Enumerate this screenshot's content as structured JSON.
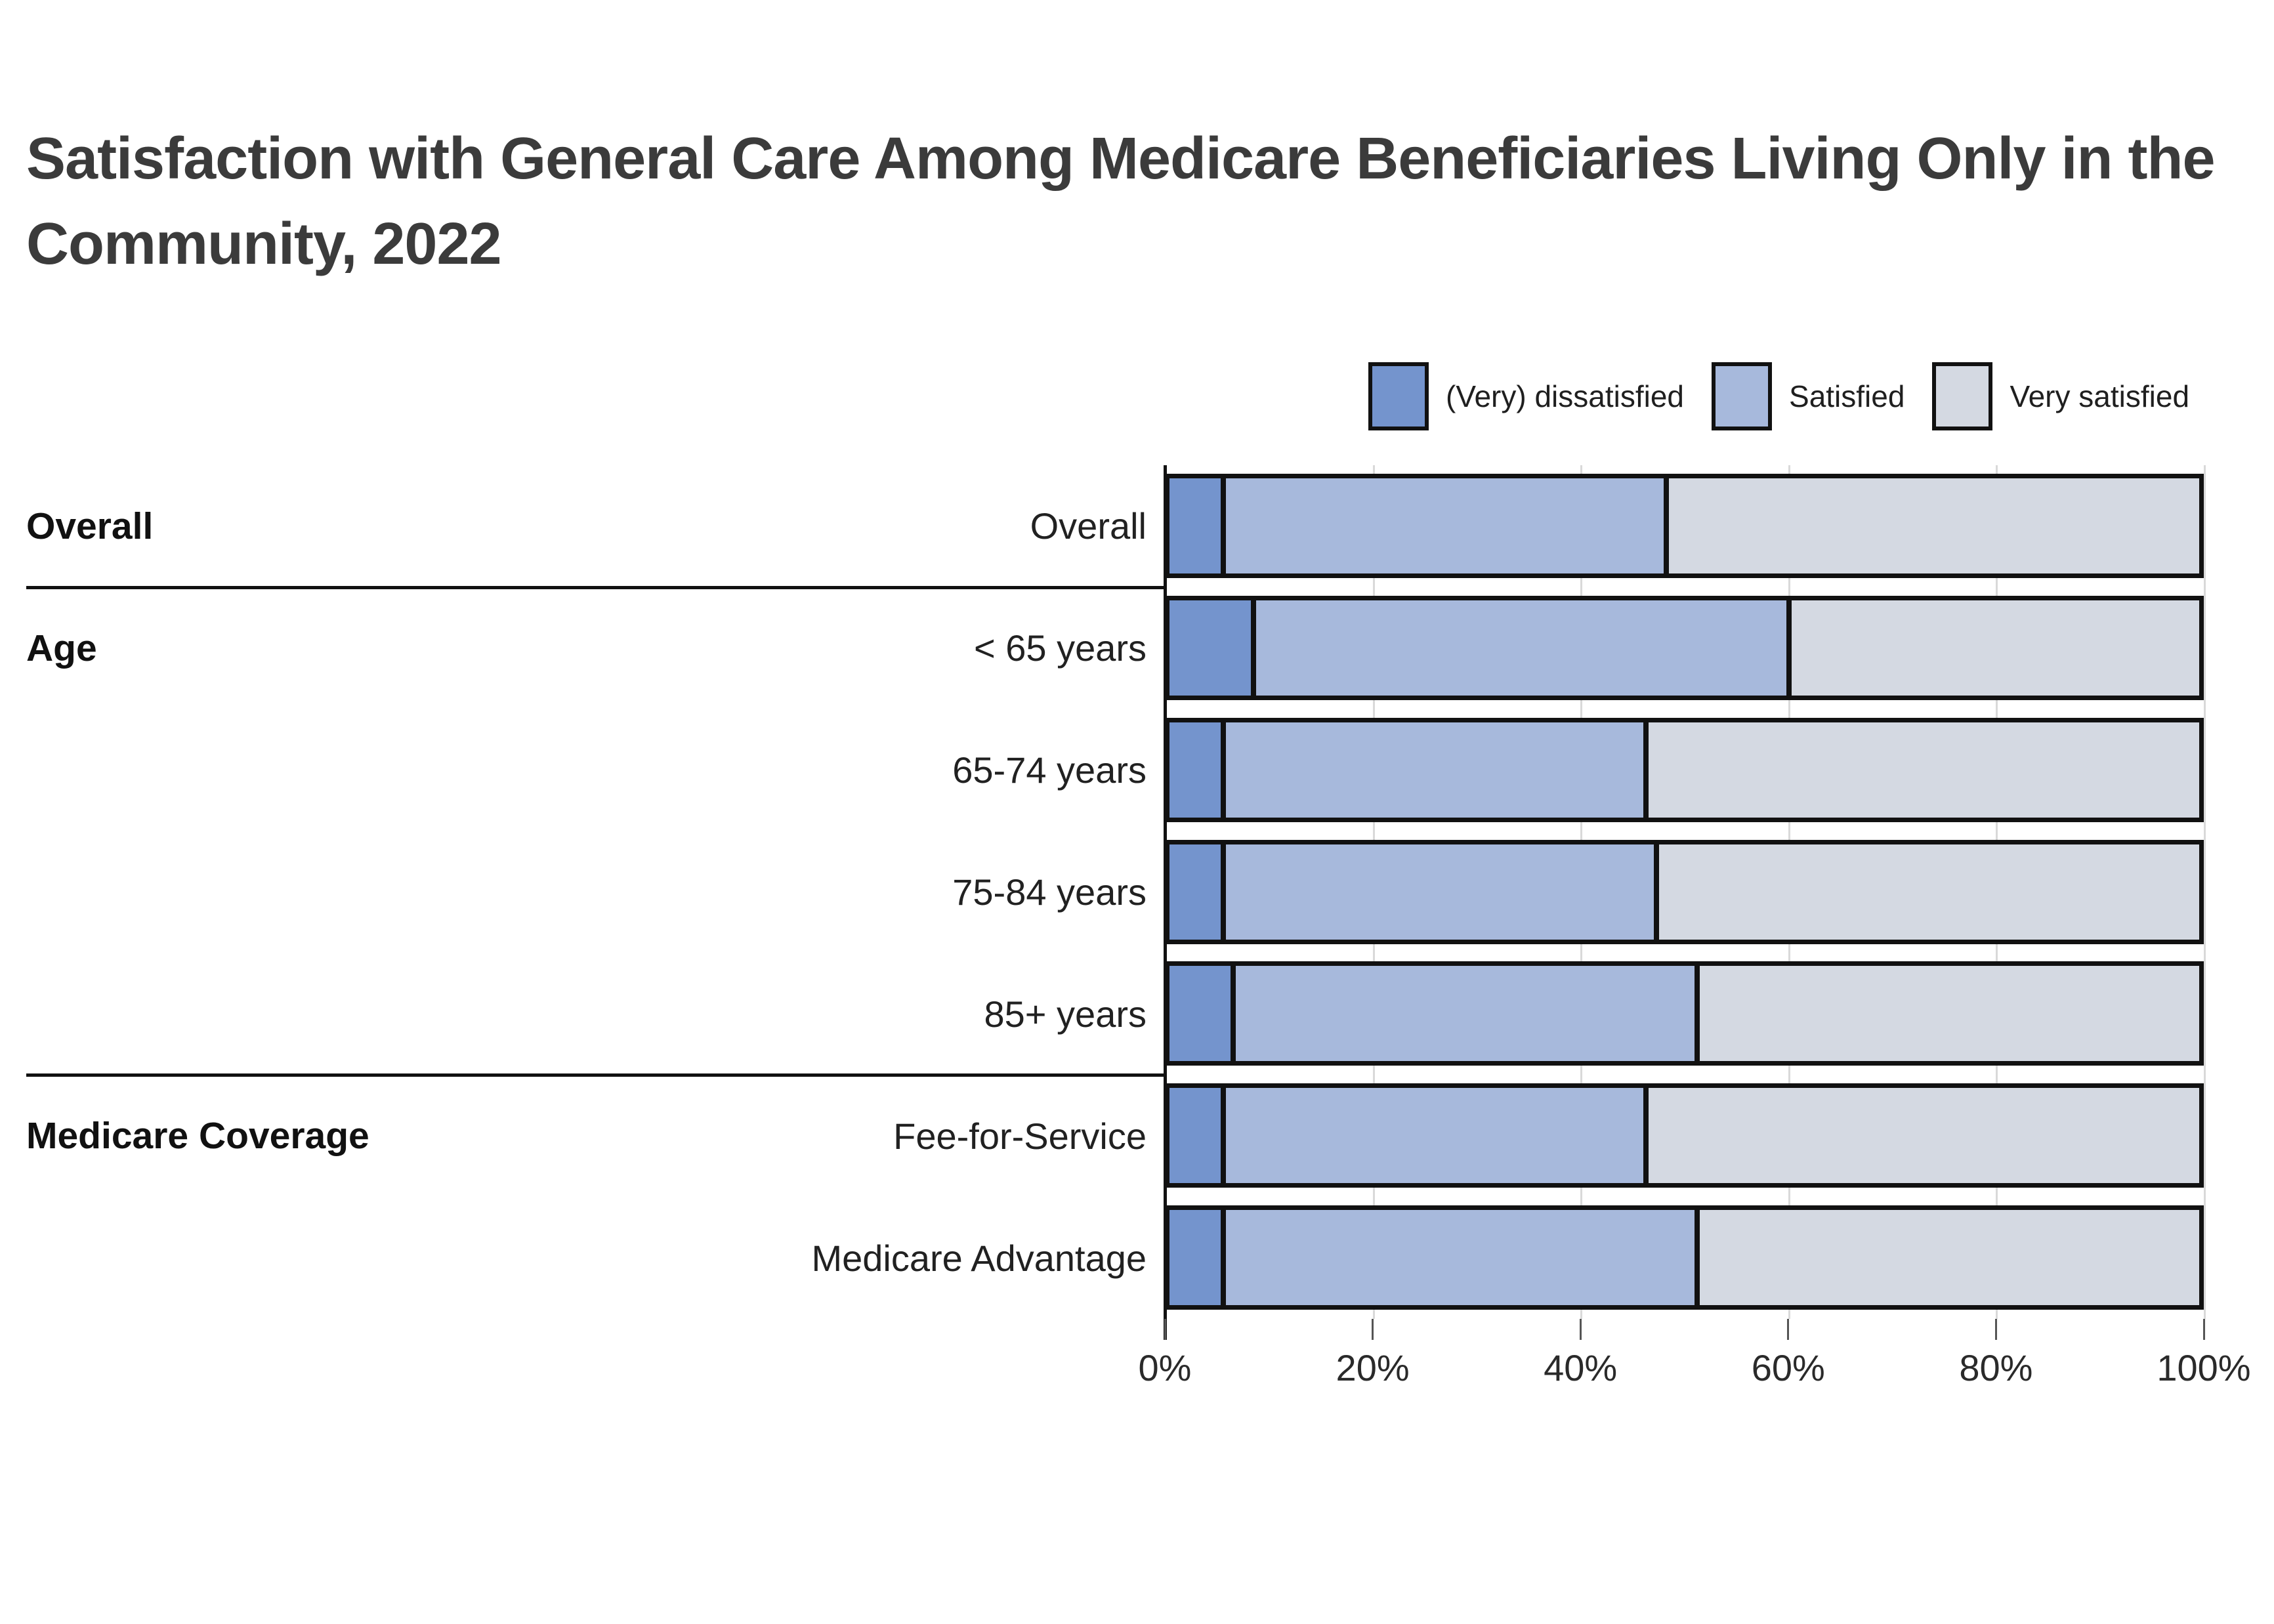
{
  "chart_data": {
    "type": "stacked_bar_horizontal",
    "title": "Satisfaction with General Care Among Medicare Beneficiaries Living Only in the Community, 2022",
    "legend_position": "top-right",
    "grid": "vertical-light",
    "x_axis": {
      "range": [
        0,
        100
      ],
      "unit": "percent",
      "ticks": [
        "0%",
        "20%",
        "40%",
        "60%",
        "80%",
        "100%"
      ]
    },
    "series": [
      {
        "name": "(Very) dissatisfied",
        "color": "#7494cd"
      },
      {
        "name": "Satisfied",
        "color": "#a7b9dc"
      },
      {
        "name": "Very satisfied",
        "color": "#d4d9e2"
      }
    ],
    "rows": [
      {
        "group": "Overall",
        "label": "Overall",
        "values": [
          5,
          43,
          52
        ]
      },
      {
        "group": "Age",
        "label": "< 65 years",
        "values": [
          8,
          52,
          40
        ]
      },
      {
        "label": "65-74 years",
        "values": [
          5,
          41,
          54
        ]
      },
      {
        "label": "75-84 years",
        "values": [
          5,
          42,
          53
        ]
      },
      {
        "label": "85+ years",
        "values": [
          6,
          45,
          49
        ]
      },
      {
        "group": "Medicare Coverage",
        "label": "Fee-for-Service",
        "values": [
          5,
          41,
          54
        ]
      },
      {
        "label": "Medicare Advantage",
        "values": [
          5,
          46,
          49
        ]
      }
    ]
  }
}
